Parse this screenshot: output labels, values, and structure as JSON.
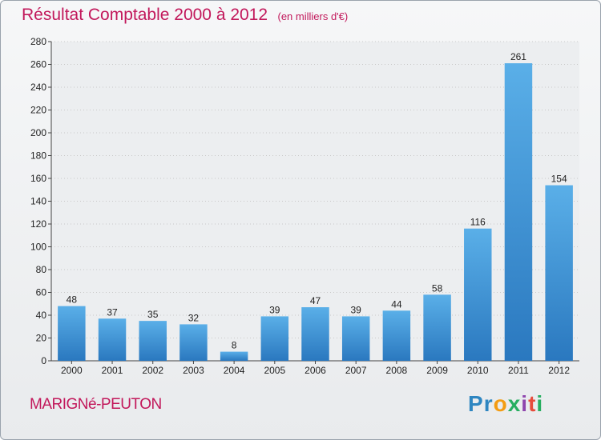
{
  "chart_data": {
    "type": "bar",
    "title": "Résultat Comptable 2000 à 2012",
    "subtitle": "(en milliers d'€)",
    "categories": [
      "2000",
      "2001",
      "2002",
      "2003",
      "2004",
      "2005",
      "2006",
      "2007",
      "2008",
      "2009",
      "2010",
      "2011",
      "2012"
    ],
    "values": [
      48,
      37,
      35,
      32,
      8,
      39,
      47,
      39,
      44,
      58,
      116,
      261,
      154
    ],
    "ylim": [
      0,
      280
    ],
    "yticks": [
      0,
      20,
      40,
      60,
      80,
      100,
      120,
      140,
      160,
      180,
      200,
      220,
      240,
      260,
      280
    ],
    "grid": true,
    "bar_color": "#3a8fd6",
    "bar_color_light": "#5aafe8"
  },
  "footer": {
    "place": "MARIGNé-PEUTON",
    "logo_letters": [
      {
        "char": "P",
        "color": "#2e86c1"
      },
      {
        "char": "r",
        "color": "#2e86c1"
      },
      {
        "char": "o",
        "color": "#f39c12"
      },
      {
        "char": "x",
        "color": "#27ae60"
      },
      {
        "char": "i",
        "color": "#8e44ad"
      },
      {
        "char": "t",
        "color": "#e74c3c"
      },
      {
        "char": "i",
        "color": "#27ae60"
      }
    ]
  },
  "colors": {
    "title": "#c2185b",
    "grid": "#c8c8c8",
    "axis": "#444444"
  }
}
